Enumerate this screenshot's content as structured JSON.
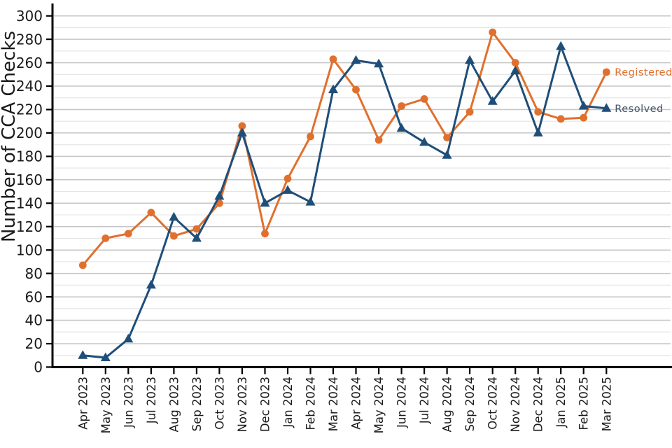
{
  "chart_data": {
    "type": "line",
    "title": "",
    "xlabel": "",
    "ylabel": "Number of CCA Checks",
    "ylim": [
      0,
      300
    ],
    "ytick_step": 20,
    "minor_grid_step": 10,
    "grid": "horizontal",
    "legend_position": "right-end-of-line",
    "categories": [
      "Apr 2023",
      "May 2023",
      "Jun 2023",
      "Jul 2023",
      "Aug 2023",
      "Sep 2023",
      "Oct 2023",
      "Nov 2023",
      "Dec 2023",
      "Jan 2024",
      "Feb 2024",
      "Mar 2024",
      "Apr 2024",
      "May 2024",
      "Jun 2024",
      "Jul 2024",
      "Aug 2024",
      "Sep 2024",
      "Oct 2024",
      "Nov 2024",
      "Dec 2024",
      "Jan 2025",
      "Feb 2025",
      "Mar 2025"
    ],
    "series": [
      {
        "name": "Registered",
        "marker": "circle",
        "color": "#E0702D",
        "label_color": "#E0702D",
        "values": [
          87,
          110,
          114,
          132,
          112,
          118,
          140,
          206,
          114,
          161,
          197,
          263,
          237,
          194,
          223,
          229,
          196,
          218,
          286,
          260,
          218,
          212,
          213,
          252
        ]
      },
      {
        "name": "Resolved",
        "marker": "triangle",
        "color": "#1F4E79",
        "label_color": "#44546A",
        "values": [
          10,
          8,
          24,
          70,
          128,
          110,
          146,
          200,
          140,
          151,
          141,
          237,
          262,
          259,
          204,
          192,
          181,
          262,
          227,
          253,
          200,
          274,
          223,
          221
        ]
      }
    ],
    "colors": {
      "axis": "#000000",
      "tick_label": "#1a1a1a",
      "grid_major": "#c6c6c6",
      "grid_minor": "#e4e4e4",
      "background": "#ffffff"
    }
  }
}
